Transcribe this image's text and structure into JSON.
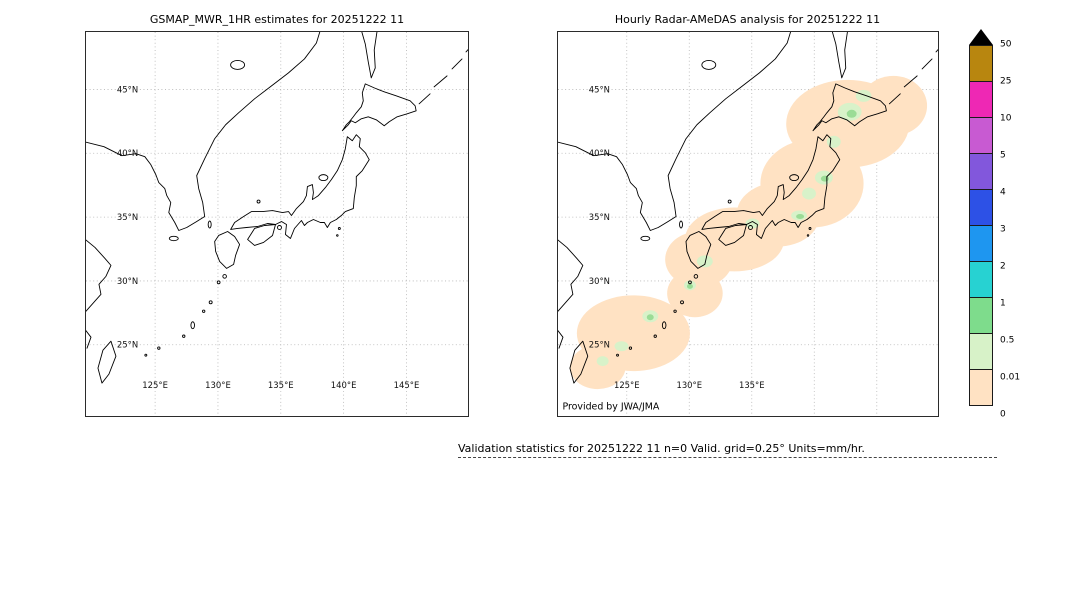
{
  "figure": {
    "background": "#ffffff"
  },
  "panels": [
    {
      "title": "GSMAP_MWR_1HR estimates for 20251222 11",
      "lat_ticks": [
        "45°N",
        "40°N",
        "35°N",
        "30°N",
        "25°N"
      ],
      "lon_ticks": [
        "125°E",
        "130°E",
        "135°E",
        "140°E",
        "145°E"
      ]
    },
    {
      "title": "Hourly Radar-AMeDAS analysis for 20251222 11",
      "lat_ticks": [
        "45°N",
        "40°N",
        "35°N",
        "30°N",
        "25°N"
      ],
      "lon_ticks": [
        "125°E",
        "130°E",
        "135°E"
      ],
      "credit": "Provided by JWA/JMA"
    }
  ],
  "precip_colors": {
    "trace_peach": "#ffe2c3",
    "light_green": "#d8f2c9",
    "green": "#9bdc96"
  },
  "colorbar": {
    "labels": [
      "50",
      "25",
      "10",
      "5",
      "4",
      "3",
      "2",
      "1",
      "0.5",
      "0.01",
      "0"
    ],
    "segment_colors_top_to_bottom": [
      "#b8860f",
      "#ee28b4",
      "#c85ad2",
      "#8257dc",
      "#2d51e6",
      "#1e96f0",
      "#27d2d2",
      "#7edc8c",
      "#d7f2c8",
      "#ffe2c3"
    ],
    "overflow_color": "#000000"
  },
  "footer": {
    "validation_text": "Validation statistics for 20251222 11  n=0 Valid. grid=0.25° Units=mm/hr."
  },
  "chart_data": {
    "type": "heatmap",
    "panels": [
      {
        "title": "GSMAP_MWR_1HR estimates for 20251222 11",
        "lon_range_deg_e": [
          119.5,
          150.0
        ],
        "lat_range_deg_n": [
          19.5,
          49.5
        ],
        "lon_tick_labels": [
          "125°E",
          "130°E",
          "135°E",
          "140°E",
          "145°E"
        ],
        "lat_tick_labels": [
          "45°N",
          "40°N",
          "35°N",
          "30°N",
          "25°N"
        ],
        "data": "no shaded precipitation shown (no valid satellite estimates, n=0)"
      },
      {
        "title": "Hourly Radar-AMeDAS analysis for 20251222 11",
        "lon_range_deg_e": [
          119.5,
          150.0
        ],
        "lat_range_deg_n": [
          19.5,
          49.5
        ],
        "lon_tick_labels": [
          "125°E",
          "130°E",
          "135°E"
        ],
        "lat_tick_labels": [
          "45°N",
          "40°N",
          "35°N",
          "30°N",
          "25°N"
        ],
        "data": "light precipitation, mostly 0-0.5 mm/hr with local 0.5-1 mm/hr patches, along the Japanese archipelago from the Okinawa/Amami islands through Kyushu, Shikoku, Honshu and Hokkaido"
      }
    ],
    "colorbar_levels_mm_per_hr": [
      0,
      0.01,
      0.5,
      1,
      2,
      3,
      4,
      5,
      10,
      25,
      50
    ],
    "colorbar_colors_low_to_high": [
      "#ffe2c3",
      "#d7f2c8",
      "#7edc8c",
      "#27d2d2",
      "#1e96f0",
      "#2d51e6",
      "#8257dc",
      "#c85ad2",
      "#ee28b4",
      "#b8860f"
    ],
    "colorbar_overflow_above_50": "#000000",
    "units": "mm/hr",
    "stats": {
      "n": 0,
      "grid": "0.25°"
    },
    "legend_position": "right",
    "grid": true
  }
}
